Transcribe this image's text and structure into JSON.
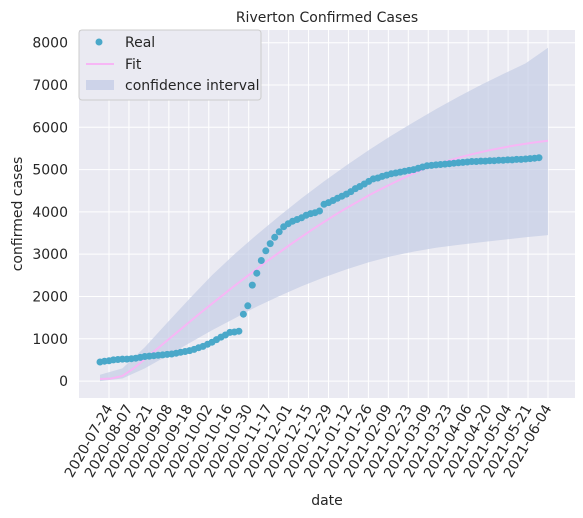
{
  "chart_data": {
    "type": "scatter",
    "title": "Riverton Confirmed Cases",
    "xlabel": "date",
    "ylabel": "confirmed cases",
    "ylim": [
      -400,
      8300
    ],
    "yticks": [
      0,
      1000,
      2000,
      3000,
      4000,
      5000,
      6000,
      7000,
      8000
    ],
    "xticks": [
      "2020-07-24",
      "2020-08-07",
      "2020-08-21",
      "2020-09-08",
      "2020-09-18",
      "2020-10-02",
      "2020-10-16",
      "2020-10-30",
      "2020-11-17",
      "2020-12-01",
      "2020-12-15",
      "2020-12-29",
      "2021-01-12",
      "2021-01-26",
      "2021-02-09",
      "2021-02-23",
      "2021-03-09",
      "2021-03-23",
      "2021-04-06",
      "2021-04-20",
      "2021-05-04",
      "2021-05-21",
      "2021-06-04"
    ],
    "legend": {
      "position": "top-left",
      "entries": [
        "Real",
        "Fit",
        "confidence interval"
      ]
    },
    "colors": {
      "real": "#4aa8c9",
      "fit": "#f7b6f5",
      "ci": "#c5cde6",
      "background": "#eaeaf2",
      "grid": "#ffffff"
    },
    "series": [
      {
        "name": "Real",
        "kind": "scatter",
        "x": [
          0,
          2,
          4,
          6,
          8,
          10,
          12,
          14,
          16,
          18,
          20,
          22,
          24,
          26,
          28,
          30,
          32,
          34,
          36,
          38,
          40,
          42,
          44,
          46,
          48,
          50,
          52,
          54,
          56,
          58,
          60,
          62,
          64,
          66,
          68,
          70,
          72,
          74,
          76,
          78,
          80,
          82,
          84,
          86,
          88,
          90,
          92,
          94,
          96,
          98,
          100,
          102,
          104,
          106,
          108,
          110,
          112,
          114,
          116,
          118,
          120,
          122,
          124,
          126,
          128,
          130,
          132,
          134,
          136,
          138,
          140,
          142,
          144,
          146,
          148,
          150,
          152,
          154,
          156,
          158,
          160,
          162,
          164,
          166,
          168,
          170,
          172,
          174,
          176,
          178,
          180,
          182,
          184,
          186,
          188,
          190,
          192,
          194,
          196
        ],
        "y": [
          450,
          470,
          480,
          500,
          510,
          520,
          520,
          530,
          540,
          560,
          580,
          590,
          600,
          610,
          620,
          630,
          640,
          660,
          680,
          700,
          720,
          750,
          790,
          820,
          870,
          920,
          980,
          1040,
          1090,
          1150,
          1160,
          1180,
          1580,
          1780,
          2270,
          2550,
          2850,
          3080,
          3250,
          3400,
          3530,
          3650,
          3720,
          3780,
          3820,
          3860,
          3920,
          3960,
          3980,
          4020,
          4180,
          4220,
          4270,
          4320,
          4370,
          4420,
          4480,
          4550,
          4600,
          4660,
          4720,
          4780,
          4800,
          4840,
          4870,
          4900,
          4920,
          4940,
          4960,
          4980,
          5000,
          5030,
          5060,
          5090,
          5100,
          5110,
          5120,
          5130,
          5140,
          5150,
          5160,
          5170,
          5180,
          5190,
          5190,
          5200,
          5200,
          5210,
          5210,
          5220,
          5220,
          5230,
          5230,
          5240,
          5240,
          5250,
          5260,
          5270,
          5280
        ]
      },
      {
        "name": "Fit",
        "kind": "line",
        "x": [
          0,
          5,
          10,
          15,
          20,
          25,
          30,
          35,
          40,
          45,
          50,
          55,
          60,
          65,
          70,
          75,
          80,
          85,
          90,
          95,
          100,
          105,
          110,
          115,
          120,
          125,
          130,
          135,
          140,
          145,
          150,
          155,
          160,
          165,
          170,
          175,
          180,
          185,
          190,
          195,
          200
        ],
        "y": [
          50,
          60,
          120,
          300,
          520,
          740,
          960,
          1180,
          1400,
          1620,
          1830,
          2040,
          2250,
          2450,
          2650,
          2850,
          3040,
          3230,
          3410,
          3590,
          3760,
          3930,
          4090,
          4240,
          4390,
          4530,
          4660,
          4790,
          4910,
          5020,
          5120,
          5200,
          5280,
          5350,
          5410,
          5470,
          5520,
          5570,
          5610,
          5650,
          5680
        ]
      },
      {
        "name": "confidence interval",
        "kind": "band",
        "x": [
          0,
          10,
          20,
          30,
          40,
          50,
          60,
          70,
          80,
          90,
          100,
          110,
          120,
          130,
          140,
          150,
          160,
          170,
          180,
          190,
          200
        ],
        "lower": [
          0,
          60,
          300,
          600,
          900,
          1200,
          1480,
          1760,
          2010,
          2240,
          2450,
          2640,
          2810,
          2950,
          3060,
          3150,
          3220,
          3280,
          3340,
          3400,
          3450
        ],
        "upper": [
          150,
          300,
          800,
          1380,
          1950,
          2500,
          3000,
          3460,
          3900,
          4320,
          4720,
          5100,
          5460,
          5800,
          6120,
          6430,
          6720,
          7000,
          7260,
          7510,
          7880
        ]
      }
    ]
  }
}
